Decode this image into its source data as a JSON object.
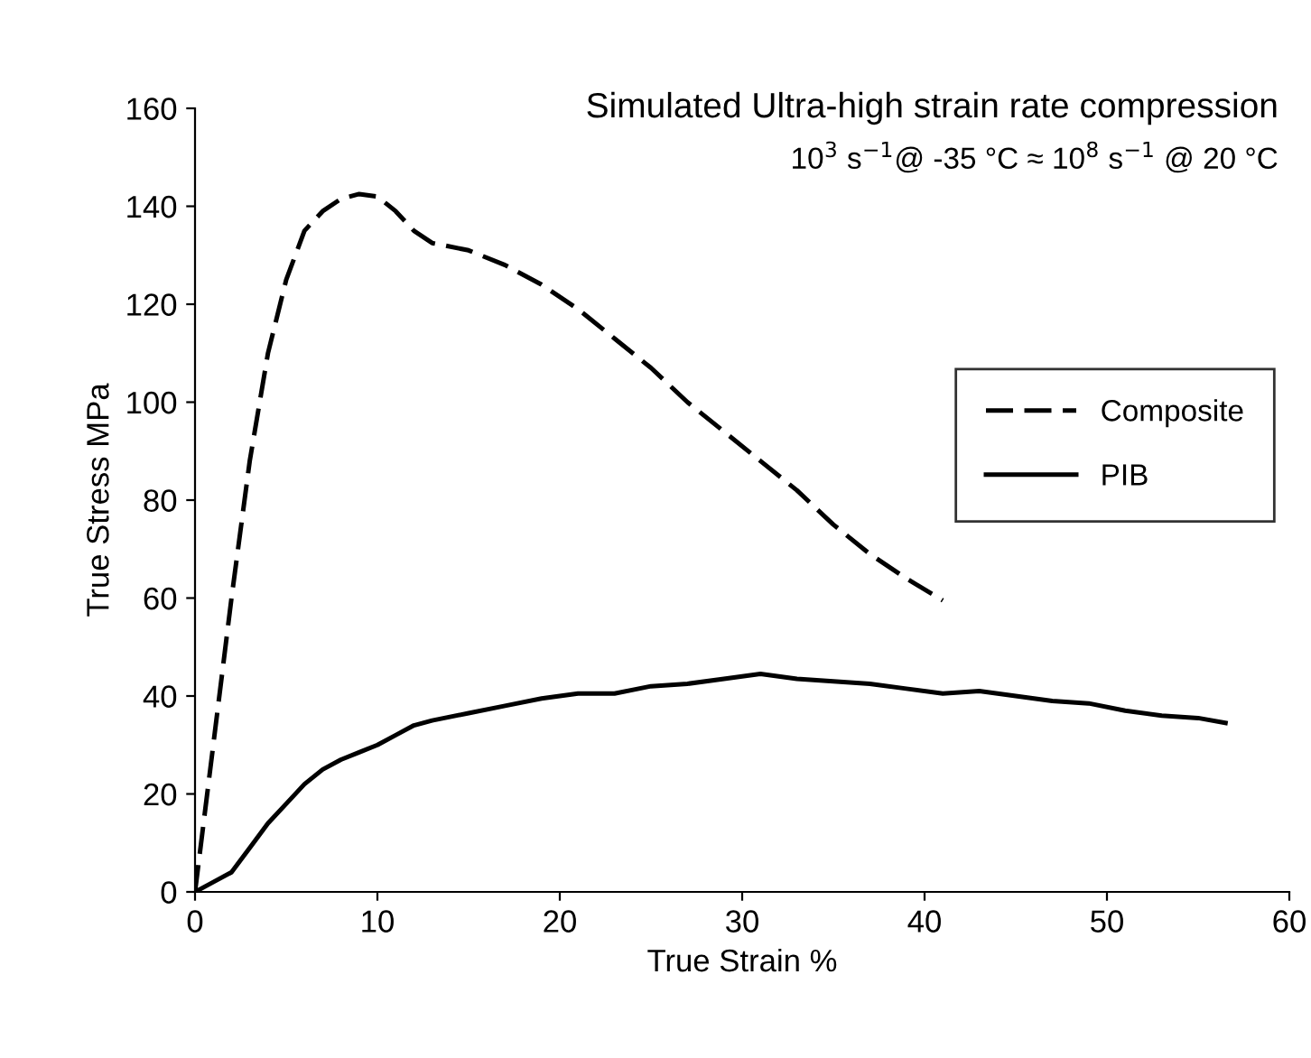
{
  "chart_data": {
    "type": "line",
    "title": "Simulated Ultra-high strain rate compression",
    "subtitle": "10$^{3}$ s$^{−1}$@ -35 °C ≈ 10$^{8}$ s$^{−1}$ @ 20 °C",
    "xlabel": "True Strain %",
    "ylabel": "True Stress MPa",
    "xlim": [
      0,
      60
    ],
    "xticks": [
      0,
      10,
      20,
      30,
      40,
      50,
      60
    ],
    "ylim": [
      0,
      160
    ],
    "yticks": [
      0,
      20,
      40,
      60,
      80,
      100,
      120,
      140,
      160
    ],
    "grid": false,
    "legend": "right",
    "marker": "none",
    "series": [
      {
        "name": "Composite",
        "color": "#000000",
        "line_style": "dashed",
        "x": [
          0,
          1,
          2,
          3,
          4,
          5,
          6,
          7,
          8,
          9,
          10,
          11,
          12,
          13,
          15,
          17,
          19,
          21,
          23,
          25,
          27,
          29,
          31,
          33,
          35,
          37,
          39,
          41
        ],
        "values": [
          0,
          30,
          60,
          88,
          110,
          125,
          135,
          139,
          141.5,
          142.5,
          142,
          139,
          135,
          132.5,
          131,
          128,
          124,
          119,
          113,
          107,
          100,
          94,
          88,
          82,
          75,
          69,
          64,
          59.5
        ]
      },
      {
        "name": "PIB",
        "color": "#000000",
        "line_style": "solid",
        "x": [
          0,
          1,
          2,
          3,
          4,
          5,
          6,
          7,
          8,
          9,
          10,
          11,
          12,
          13,
          15,
          17,
          19,
          21,
          23,
          25,
          27,
          29,
          31,
          33,
          35,
          37,
          39,
          41,
          43,
          45,
          47,
          49,
          51,
          53,
          55,
          56.5
        ],
        "values": [
          0,
          2,
          4,
          9,
          14,
          18,
          22,
          25,
          27,
          28.5,
          30,
          32,
          34,
          35,
          36.5,
          38,
          39.5,
          40.5,
          40.5,
          42,
          42.5,
          43.5,
          44.5,
          43.5,
          43,
          42.5,
          41.5,
          40.5,
          41,
          40,
          39,
          38.5,
          37,
          36,
          35.5,
          34.5
        ]
      }
    ]
  }
}
